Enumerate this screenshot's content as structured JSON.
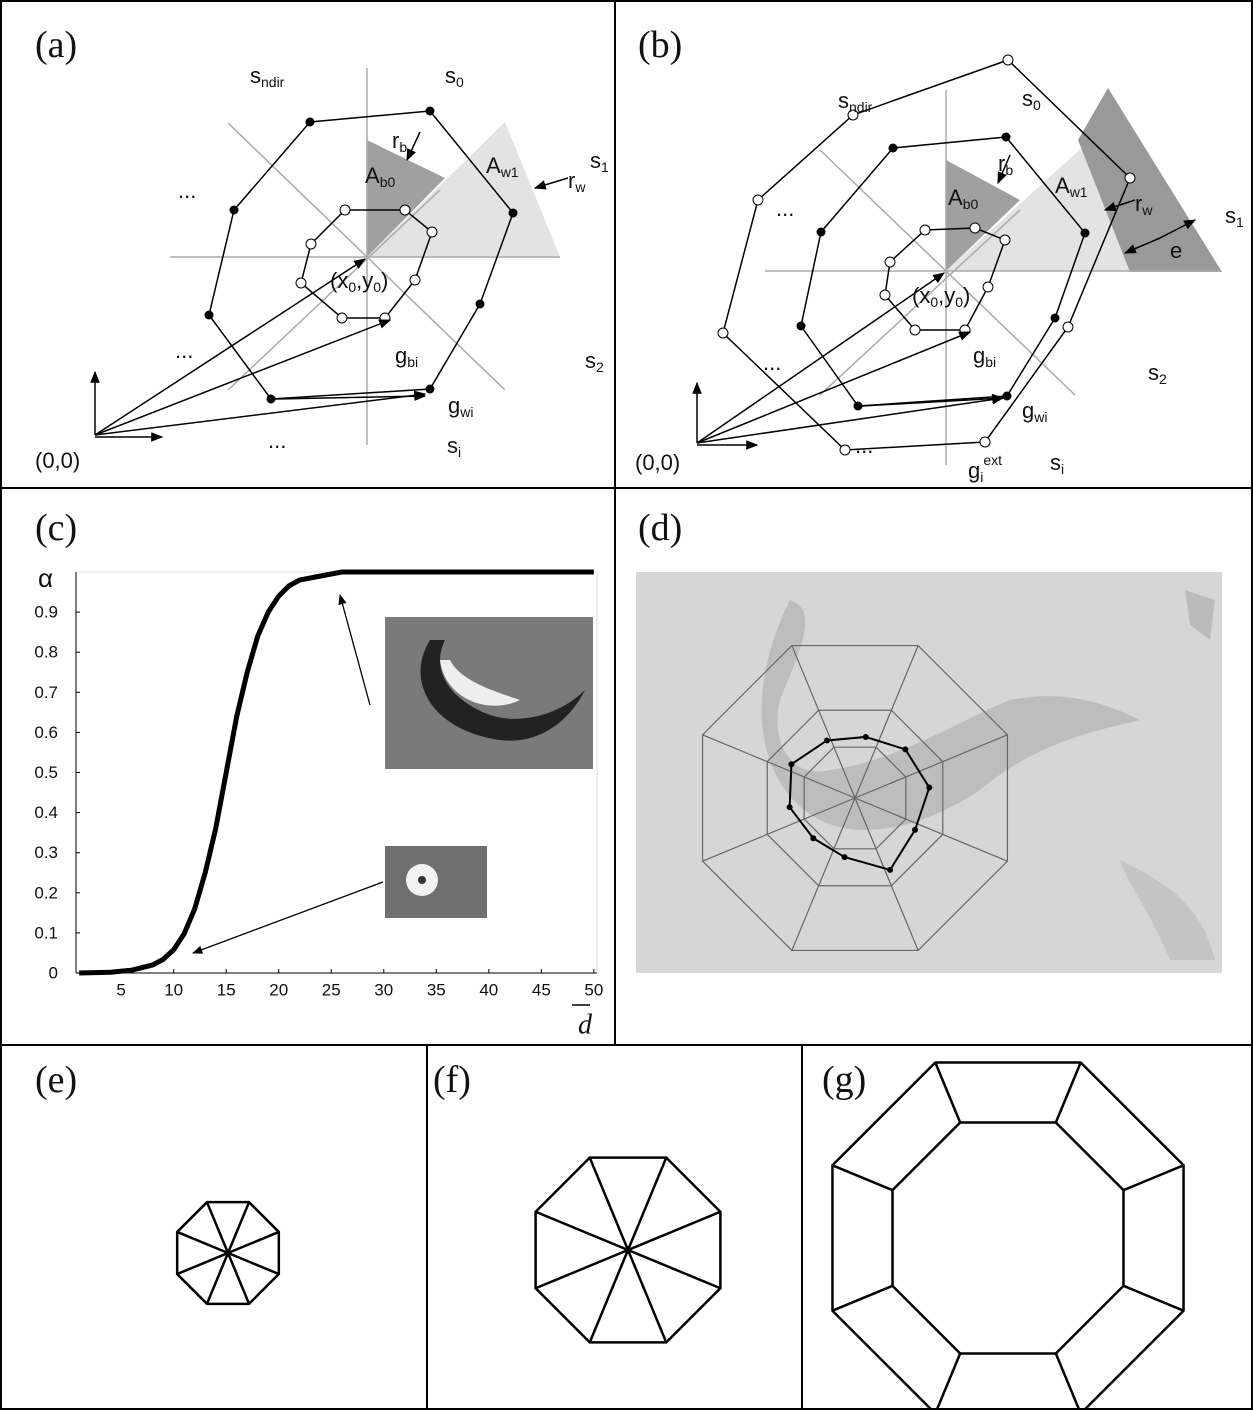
{
  "panel_a": {
    "label": "(a)",
    "texts": [
      [
        {
          "t": "s"
        },
        {
          "sub": "ndir"
        }
      ],
      [
        {
          "t": "s"
        },
        {
          "sub": "0"
        }
      ],
      [
        {
          "t": "s"
        },
        {
          "sub": "1"
        }
      ],
      [
        {
          "t": "s"
        },
        {
          "sub": "2"
        }
      ],
      [
        {
          "t": "s"
        },
        {
          "sub": "i"
        }
      ],
      [
        {
          "t": "r"
        },
        {
          "sub": "b"
        }
      ],
      [
        {
          "t": "r"
        },
        {
          "sub": "w"
        }
      ],
      [
        {
          "t": "A"
        },
        {
          "sub": "b0"
        }
      ],
      [
        {
          "t": "A"
        },
        {
          "sub": "w1"
        }
      ],
      [
        {
          "t": "..."
        }
      ],
      [
        {
          "t": "..."
        }
      ],
      [
        {
          "t": "..."
        }
      ],
      [
        {
          "t": "(x"
        },
        {
          "sub": "0"
        },
        {
          "t": ",y"
        },
        {
          "sub": "0"
        },
        {
          "t": ")"
        }
      ],
      [
        {
          "t": "g"
        },
        {
          "sub": "bi"
        }
      ],
      [
        {
          "t": "g"
        },
        {
          "sub": "wi"
        }
      ],
      [
        {
          "t": "(0,0)"
        }
      ]
    ]
  },
  "panel_b": {
    "label": "(b)",
    "texts": [
      [
        {
          "t": "s"
        },
        {
          "sub": "ndir"
        }
      ],
      [
        {
          "t": "s"
        },
        {
          "sub": "0"
        }
      ],
      [
        {
          "t": "s"
        },
        {
          "sub": "1"
        }
      ],
      [
        {
          "t": "s"
        },
        {
          "sub": "2"
        }
      ],
      [
        {
          "t": "s"
        },
        {
          "sub": "i"
        }
      ],
      [
        {
          "t": "r"
        },
        {
          "sub": "b"
        }
      ],
      [
        {
          "t": "r"
        },
        {
          "sub": "w"
        }
      ],
      [
        {
          "t": "A"
        },
        {
          "sub": "b0"
        }
      ],
      [
        {
          "t": "A"
        },
        {
          "sub": "w1"
        }
      ],
      [
        {
          "t": "e"
        }
      ],
      [
        {
          "t": "..."
        }
      ],
      [
        {
          "t": "..."
        }
      ],
      [
        {
          "t": "..."
        }
      ],
      [
        {
          "t": "(x"
        },
        {
          "sub": "0"
        },
        {
          "t": ",y"
        },
        {
          "sub": "0"
        },
        {
          "t": ")"
        }
      ],
      [
        {
          "t": "g"
        },
        {
          "sub": "bi"
        }
      ],
      [
        {
          "t": "g"
        },
        {
          "sub": "wi"
        }
      ],
      [
        {
          "t": "g"
        },
        {
          "sub": "i"
        },
        {
          "sup": "ext"
        }
      ],
      [
        {
          "t": "(0,0)"
        }
      ]
    ]
  },
  "panel_c": {
    "label": "(c)"
  },
  "panel_d": {
    "label": "(d)"
  },
  "panel_e": {
    "label": "(e)"
  },
  "panel_f": {
    "label": "(f)"
  },
  "panel_g": {
    "label": "(g)"
  },
  "chart_data": {
    "type": "line",
    "x_label": "d",
    "y_label": "α",
    "x": [
      1,
      4,
      6,
      8,
      9,
      10,
      11,
      12,
      13,
      14,
      15,
      16,
      17,
      18,
      19,
      20,
      21,
      22,
      24,
      26,
      28,
      30,
      35,
      40,
      45,
      50
    ],
    "series": [
      {
        "color": "#000000",
        "values": [
          0,
          0.002,
          0.007,
          0.02,
          0.034,
          0.058,
          0.098,
          0.16,
          0.25,
          0.36,
          0.5,
          0.64,
          0.75,
          0.84,
          0.9,
          0.94,
          0.966,
          0.98,
          0.99,
          1,
          1,
          1,
          1,
          1,
          1,
          1
        ]
      }
    ],
    "xlim": [
      0.7,
      50.3
    ],
    "ylim": [
      0,
      1
    ],
    "xticks": [
      5,
      10,
      15,
      20,
      25,
      30,
      35,
      40,
      45,
      50
    ],
    "yticks": [
      0,
      0.1,
      0.2,
      0.3,
      0.4,
      0.5,
      0.6,
      0.7,
      0.8,
      0.9
    ]
  }
}
